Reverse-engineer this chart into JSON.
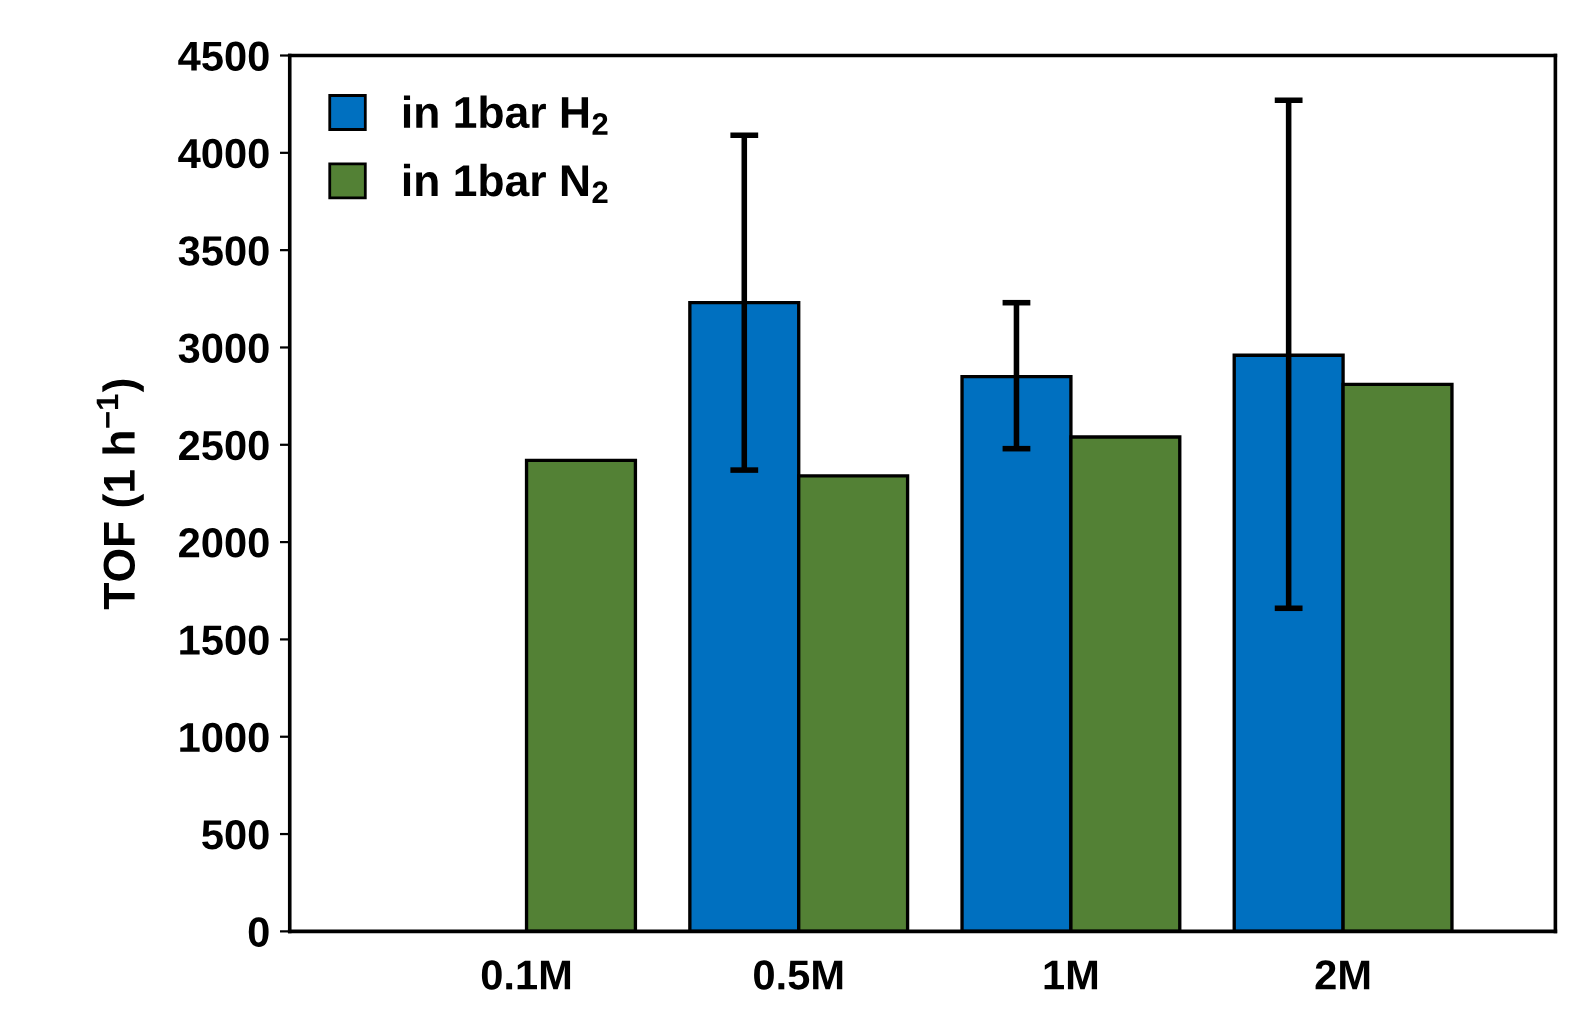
{
  "chart_data": {
    "type": "bar",
    "ylabel": "TOF (1 h$^{−1}$)",
    "categories": [
      "0.1M",
      "0.5M",
      "1M",
      "2M"
    ],
    "series": [
      {
        "name": "in 1bar H$_{2}$",
        "color": "#0070c0",
        "values": [
          null,
          3230,
          2850,
          2960
        ],
        "errors": [
          null,
          [
            2370,
            4090
          ],
          [
            2480,
            3230
          ],
          [
            1660,
            4270
          ]
        ]
      },
      {
        "name": "in 1bar N$_{2}$",
        "color": "#538135",
        "values": [
          2420,
          2340,
          2540,
          2810
        ]
      }
    ],
    "ylim": [
      0,
      4500
    ],
    "yticks": [
      0,
      500,
      1000,
      1500,
      2000,
      2500,
      3000,
      3500,
      4000,
      4500
    ],
    "grid": false,
    "legend": "top left"
  }
}
